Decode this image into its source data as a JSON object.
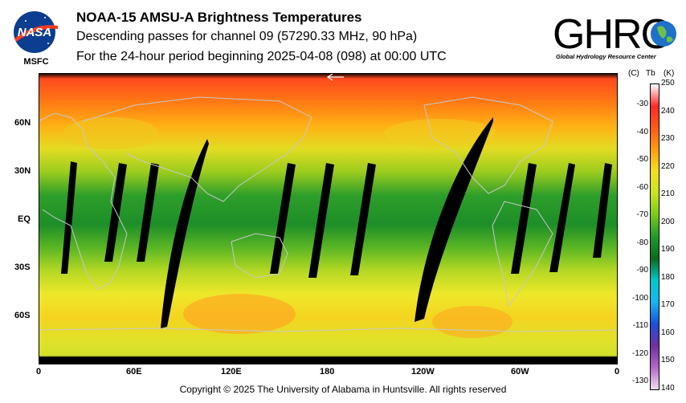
{
  "logo_left": {
    "name": "NASA",
    "sub": "MSFC"
  },
  "logo_right": {
    "name": "GHRC",
    "sub": "Global Hydrology Resource Center"
  },
  "title": "NOAA-15 AMSU-A Brightness Temperatures",
  "subtitle": "Descending passes for channel 09 (57290.33 MHz, 90 hPa)",
  "period": "For the 24-hour period beginning 2025-04-08 (098) at 00:00 UTC",
  "map": {
    "lat_labels": [
      "60N",
      "30N",
      "EQ",
      "30S",
      "60S"
    ],
    "lon_labels": [
      "0",
      "60E",
      "120E",
      "180",
      "120W",
      "60W",
      "0"
    ]
  },
  "colorbar": {
    "header_c": "(C)",
    "header_tb": "Tb",
    "header_k": "(K)",
    "kelvin_ticks": [
      "250",
      "240",
      "230",
      "220",
      "210",
      "200",
      "190",
      "180",
      "170",
      "160",
      "150",
      "140"
    ],
    "celsius_ticks": [
      "-30",
      "-40",
      "-50",
      "-60",
      "-70",
      "-80",
      "-90",
      "-100",
      "-110",
      "-120",
      "-130"
    ],
    "colors": [
      "#ffffff",
      "#ff2a2a",
      "#ff5a14",
      "#ff9d10",
      "#f4e020",
      "#c8e420",
      "#7cc81a",
      "#1e9a2c",
      "#0a6a1e",
      "#00c8c8",
      "#18b4f0",
      "#1a50d8",
      "#7030a0",
      "#b468c8",
      "#f0dcf0"
    ]
  },
  "copyright": "Copyright © 2025 The University of Alabama in Huntsville.  All rights reserved"
}
